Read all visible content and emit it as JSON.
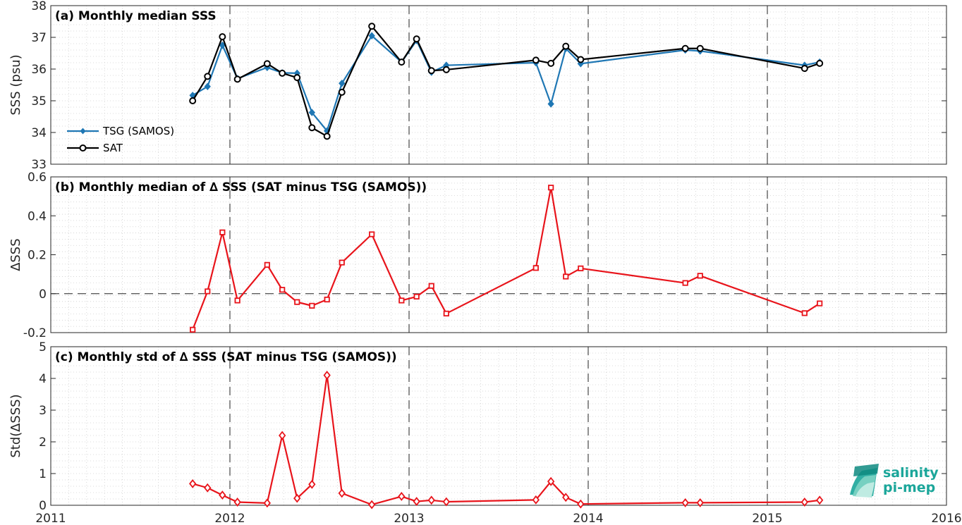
{
  "logo": {
    "line1": "salinity",
    "line2": "pi-mep",
    "color": "#1ba69a"
  },
  "x_axis": {
    "range": [
      2011,
      2016
    ],
    "ticks": [
      2011,
      2012,
      2013,
      2014,
      2015,
      2016
    ],
    "tick_labels": [
      "2011",
      "2012",
      "2013",
      "2014",
      "2015",
      "2016"
    ]
  },
  "chart_data": [
    {
      "type": "line",
      "title": "(a) Monthly median SSS",
      "xlabel": "",
      "ylabel": "SSS (psu)",
      "ylim": [
        33,
        38
      ],
      "yticks": [
        33,
        34,
        35,
        36,
        37,
        38
      ],
      "ytick_labels": [
        "33",
        "34",
        "35",
        "36",
        "37",
        "38"
      ],
      "grid": "minor-dotted",
      "legend": "lower-left",
      "series": [
        {
          "name": "TSG (SAMOS)",
          "color": "#1f77b4",
          "marker": "diamond-filled",
          "x": [
            2011.792,
            2011.875,
            2011.958,
            2012.042,
            2012.208,
            2012.292,
            2012.375,
            2012.458,
            2012.542,
            2012.625,
            2012.792,
            2012.958,
            2013.042,
            2013.125,
            2013.208,
            2013.708,
            2013.792,
            2013.875,
            2013.958,
            2014.542,
            2014.625,
            2015.208,
            2015.292
          ],
          "values": [
            35.17,
            35.45,
            36.75,
            35.7,
            36.05,
            35.88,
            35.87,
            34.63,
            34.05,
            35.55,
            37.05,
            36.22,
            36.9,
            35.9,
            36.12,
            36.2,
            34.9,
            36.65,
            36.17,
            36.6,
            36.57,
            36.12,
            36.22
          ]
        },
        {
          "name": "SAT",
          "color": "#000000",
          "marker": "circle-open",
          "x": [
            2011.792,
            2011.875,
            2011.958,
            2012.042,
            2012.208,
            2012.292,
            2012.375,
            2012.458,
            2012.542,
            2012.625,
            2012.792,
            2012.958,
            2013.042,
            2013.125,
            2013.208,
            2013.708,
            2013.792,
            2013.875,
            2013.958,
            2014.542,
            2014.625,
            2015.208,
            2015.292
          ],
          "values": [
            35.0,
            35.77,
            37.02,
            35.68,
            36.17,
            35.87,
            35.73,
            34.15,
            33.88,
            35.27,
            37.35,
            36.22,
            36.95,
            35.95,
            35.98,
            36.28,
            36.18,
            36.72,
            36.3,
            36.65,
            36.65,
            36.02,
            36.18
          ]
        }
      ]
    },
    {
      "type": "line",
      "title": "(b) Monthly median of ∆ SSS (SAT minus TSG (SAMOS))",
      "xlabel": "",
      "ylabel": "∆SSS",
      "ylim": [
        -0.2,
        0.6
      ],
      "yticks": [
        -0.2,
        0,
        0.2,
        0.4,
        0.6
      ],
      "ytick_labels": [
        "-0.2",
        "0",
        "0.2",
        "0.4",
        "0.6"
      ],
      "zero_line": true,
      "grid": "minor-dotted",
      "series": [
        {
          "color": "#e8141b",
          "marker": "square-open",
          "x": [
            2011.792,
            2011.875,
            2011.958,
            2012.042,
            2012.208,
            2012.292,
            2012.375,
            2012.458,
            2012.542,
            2012.625,
            2012.792,
            2012.958,
            2013.042,
            2013.125,
            2013.208,
            2013.708,
            2013.792,
            2013.875,
            2013.958,
            2014.542,
            2014.625,
            2015.208,
            2015.292
          ],
          "values": [
            -0.185,
            0.012,
            0.315,
            -0.035,
            0.148,
            0.02,
            -0.043,
            -0.062,
            -0.03,
            0.16,
            0.305,
            -0.035,
            -0.015,
            0.04,
            -0.102,
            0.132,
            0.545,
            0.088,
            0.13,
            0.055,
            0.092,
            -0.1,
            -0.05
          ]
        }
      ]
    },
    {
      "type": "line",
      "title": "(c) Monthly std of ∆ SSS (SAT minus TSG (SAMOS))",
      "xlabel": "",
      "ylabel": "Std(∆SSS)",
      "ylim": [
        0,
        5
      ],
      "yticks": [
        0,
        1,
        2,
        3,
        4,
        5
      ],
      "ytick_labels": [
        "0",
        "1",
        "2",
        "3",
        "4",
        "5"
      ],
      "grid": "minor-dotted",
      "series": [
        {
          "color": "#e8141b",
          "marker": "diamond-open",
          "x": [
            2011.792,
            2011.875,
            2011.958,
            2012.042,
            2012.208,
            2012.292,
            2012.375,
            2012.458,
            2012.542,
            2012.625,
            2012.792,
            2012.958,
            2013.042,
            2013.125,
            2013.208,
            2013.708,
            2013.792,
            2013.875,
            2013.958,
            2014.542,
            2014.625,
            2015.208,
            2015.292
          ],
          "values": [
            0.68,
            0.55,
            0.32,
            0.1,
            0.07,
            2.2,
            0.22,
            0.66,
            4.1,
            0.38,
            0.02,
            0.28,
            0.12,
            0.16,
            0.11,
            0.17,
            0.75,
            0.25,
            0.04,
            0.08,
            0.08,
            0.1,
            0.16
          ]
        }
      ]
    }
  ]
}
